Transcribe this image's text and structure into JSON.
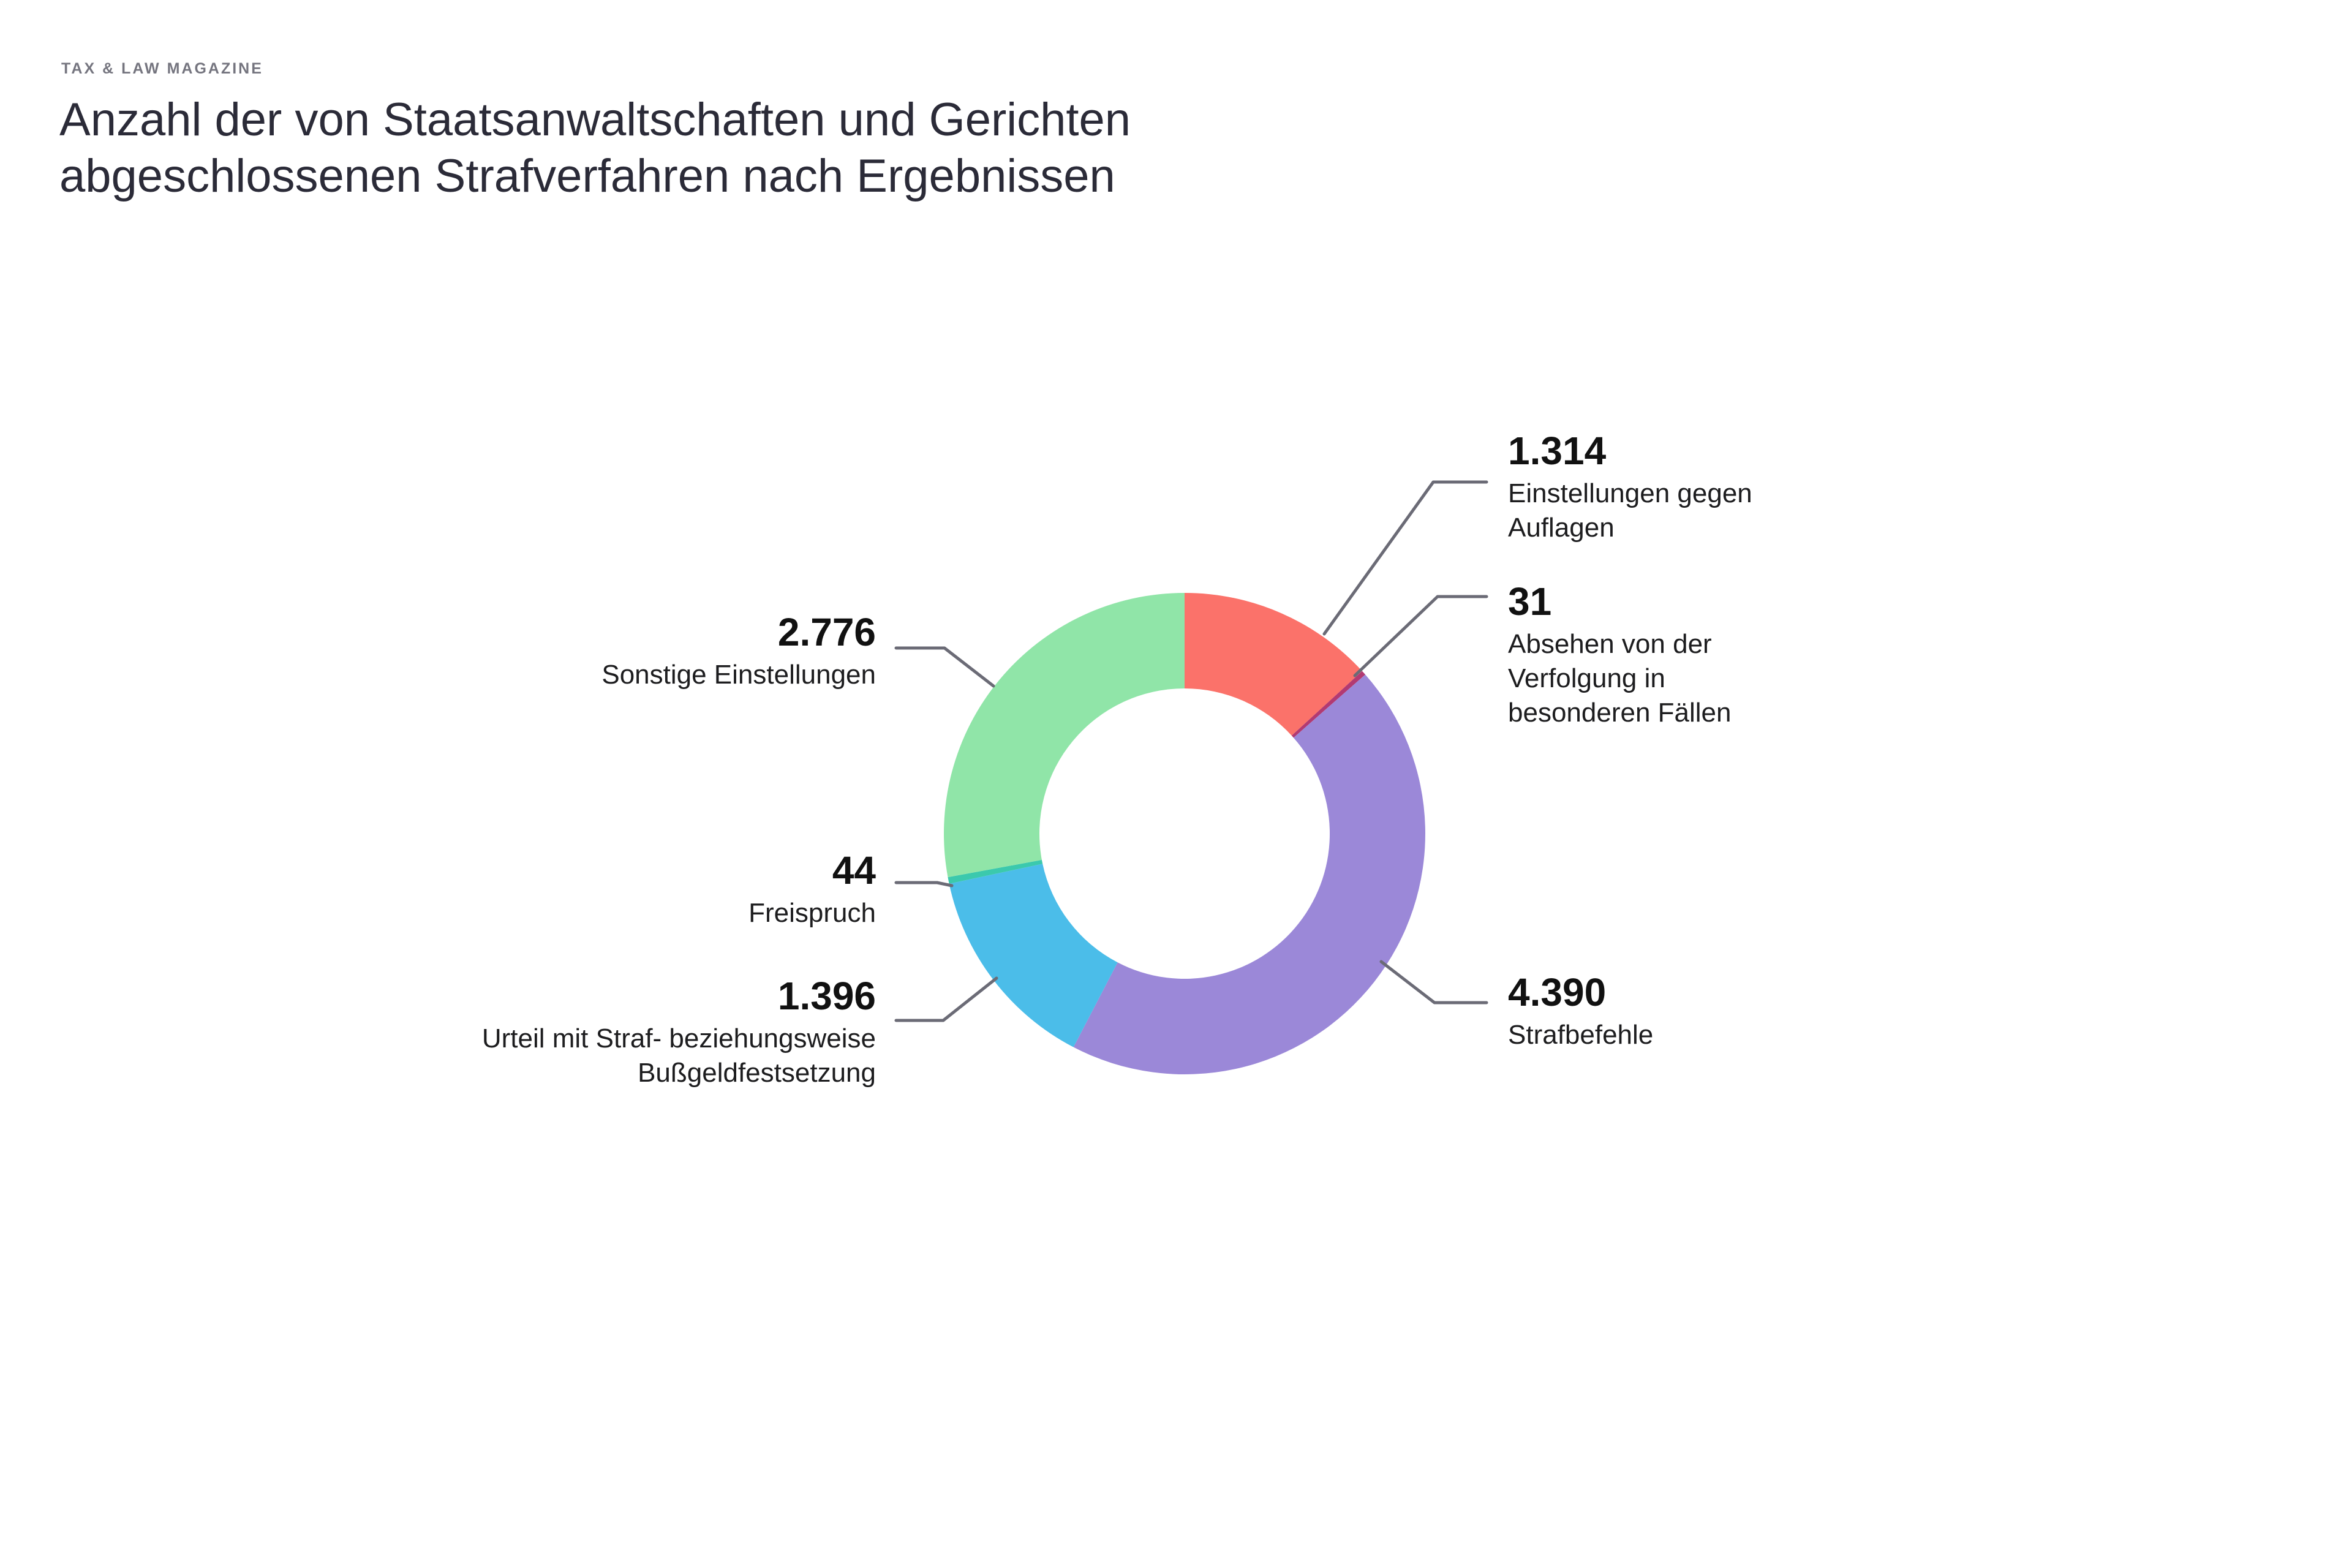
{
  "header": {
    "kicker": "TAX & LAW MAGAZINE",
    "title": "Anzahl der von Staatsanwaltschaften und Gerichten\nabgeschlossenen Strafverfahren nach Ergebnissen"
  },
  "chart_data": {
    "type": "pie",
    "variant": "donut",
    "title": "Anzahl der von Staatsanwaltschaften und Gerichten abgeschlossenen Strafverfahren nach Ergebnissen",
    "total": 9951,
    "start_angle_deg": 0,
    "direction": "clockwise",
    "legend_position": "callouts",
    "background": "#FFFFFF",
    "leader_line_color": "#6B6B76",
    "segments": [
      {
        "label": "Einstellungen gegen Auflagen",
        "value": 1314,
        "value_label": "1.314",
        "color": "#FB726A"
      },
      {
        "label": "Absehen von der Verfolgung in besonderen Fällen",
        "value": 31,
        "value_label": "31",
        "color": "#B23A72"
      },
      {
        "label": "Strafbefehle",
        "value": 4390,
        "value_label": "4.390",
        "color": "#9B88D8"
      },
      {
        "label": "Urteil mit Straf- beziehungsweise Bußgeldfestsetzung",
        "value": 1396,
        "value_label": "1.396",
        "color": "#4BBDE9"
      },
      {
        "label": "Freispruch",
        "value": 44,
        "value_label": "44",
        "color": "#3BC9AD"
      },
      {
        "label": "Sonstige Einstellungen",
        "value": 2776,
        "value_label": "2.776",
        "color": "#90E5A8"
      }
    ]
  },
  "callouts": [
    {
      "number": "1.314",
      "label": "Einstellungen gegen\nAuflagen"
    },
    {
      "number": "31",
      "label": "Absehen von der\nVerfolgung in\nbesonderen Fällen"
    },
    {
      "number": "4.390",
      "label": "Strafbefehle"
    },
    {
      "number": "1.396",
      "label": "Urteil mit Straf- beziehungsweise\nBußgeldfestsetzung"
    },
    {
      "number": "44",
      "label": "Freispruch"
    },
    {
      "number": "2.776",
      "label": "Sonstige Einstellungen"
    }
  ]
}
